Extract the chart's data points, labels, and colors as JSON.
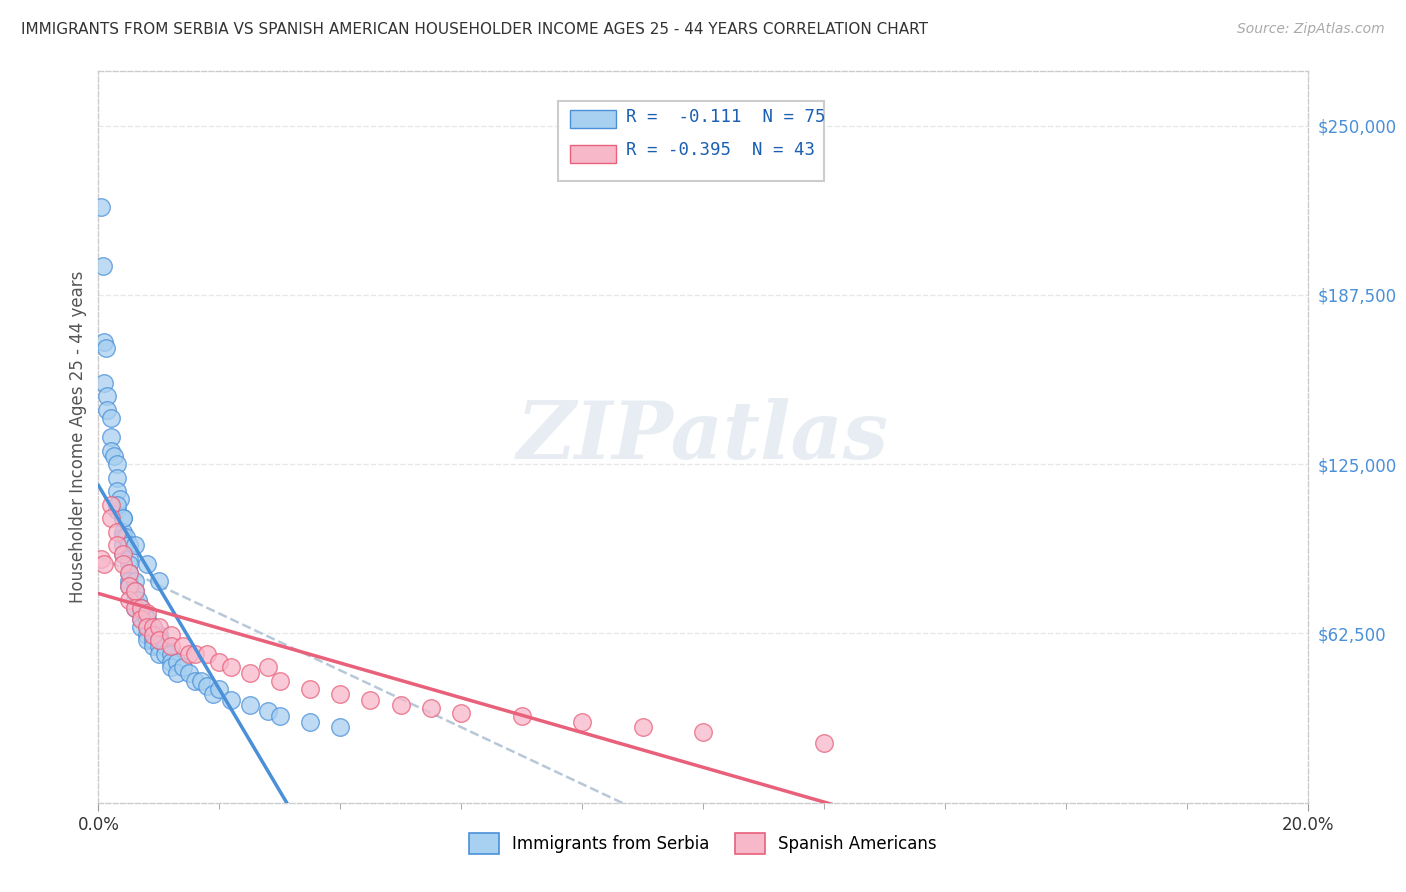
{
  "title": "IMMIGRANTS FROM SERBIA VS SPANISH AMERICAN HOUSEHOLDER INCOME AGES 25 - 44 YEARS CORRELATION CHART",
  "source": "Source: ZipAtlas.com",
  "ylabel": "Householder Income Ages 25 - 44 years",
  "xlim": [
    0.0,
    0.2
  ],
  "ylim": [
    0,
    270000
  ],
  "yticks_right": [
    250000,
    187500,
    125000,
    62500
  ],
  "ytick_labels_right": [
    "$250,000",
    "$187,500",
    "$125,000",
    "$62,500"
  ],
  "legend_bottom": [
    "Immigrants from Serbia",
    "Spanish Americans"
  ],
  "r_serbia": -0.111,
  "n_serbia": 75,
  "r_spanish": -0.395,
  "n_spanish": 43,
  "color_serbia": "#a8d0f0",
  "color_spanish": "#f7b8ca",
  "color_serbia_line": "#4a90d9",
  "color_spanish_line": "#e8607a",
  "color_combined_line": "#b8c8d8",
  "serbia_x": [
    0.0005,
    0.0008,
    0.001,
    0.001,
    0.0012,
    0.0015,
    0.0015,
    0.002,
    0.002,
    0.002,
    0.0025,
    0.003,
    0.003,
    0.003,
    0.003,
    0.0035,
    0.004,
    0.004,
    0.004,
    0.004,
    0.004,
    0.0045,
    0.005,
    0.005,
    0.005,
    0.005,
    0.005,
    0.005,
    0.006,
    0.006,
    0.006,
    0.006,
    0.0065,
    0.007,
    0.007,
    0.007,
    0.007,
    0.0075,
    0.008,
    0.008,
    0.008,
    0.008,
    0.009,
    0.009,
    0.009,
    0.009,
    0.01,
    0.01,
    0.01,
    0.01,
    0.011,
    0.011,
    0.012,
    0.012,
    0.012,
    0.013,
    0.013,
    0.014,
    0.015,
    0.016,
    0.017,
    0.018,
    0.019,
    0.02,
    0.022,
    0.025,
    0.028,
    0.03,
    0.035,
    0.04,
    0.003,
    0.004,
    0.006,
    0.008,
    0.01
  ],
  "serbia_y": [
    220000,
    198000,
    170000,
    155000,
    168000,
    150000,
    145000,
    142000,
    135000,
    130000,
    128000,
    125000,
    120000,
    115000,
    108000,
    112000,
    105000,
    100000,
    98000,
    95000,
    92000,
    98000,
    95000,
    90000,
    88000,
    85000,
    82000,
    80000,
    82000,
    78000,
    75000,
    72000,
    75000,
    72000,
    70000,
    68000,
    65000,
    70000,
    68000,
    65000,
    62000,
    60000,
    65000,
    62000,
    60000,
    58000,
    62000,
    60000,
    58000,
    55000,
    58000,
    55000,
    55000,
    52000,
    50000,
    52000,
    48000,
    50000,
    48000,
    45000,
    45000,
    43000,
    40000,
    42000,
    38000,
    36000,
    34000,
    32000,
    30000,
    28000,
    110000,
    105000,
    95000,
    88000,
    82000
  ],
  "spanish_x": [
    0.0005,
    0.001,
    0.002,
    0.002,
    0.003,
    0.003,
    0.004,
    0.004,
    0.005,
    0.005,
    0.005,
    0.006,
    0.006,
    0.007,
    0.007,
    0.008,
    0.008,
    0.009,
    0.009,
    0.01,
    0.01,
    0.012,
    0.012,
    0.014,
    0.015,
    0.016,
    0.018,
    0.02,
    0.022,
    0.025,
    0.028,
    0.03,
    0.035,
    0.04,
    0.045,
    0.05,
    0.055,
    0.06,
    0.07,
    0.08,
    0.09,
    0.1,
    0.12
  ],
  "spanish_y": [
    90000,
    88000,
    110000,
    105000,
    100000,
    95000,
    92000,
    88000,
    85000,
    80000,
    75000,
    78000,
    72000,
    72000,
    68000,
    70000,
    65000,
    65000,
    62000,
    65000,
    60000,
    62000,
    58000,
    58000,
    55000,
    55000,
    55000,
    52000,
    50000,
    48000,
    50000,
    45000,
    42000,
    40000,
    38000,
    36000,
    35000,
    33000,
    32000,
    30000,
    28000,
    26000,
    22000
  ],
  "background_color": "#ffffff",
  "grid_color": "#e8e8e8",
  "watermark_text": "ZIPatlas",
  "axis_color": "#cccccc"
}
